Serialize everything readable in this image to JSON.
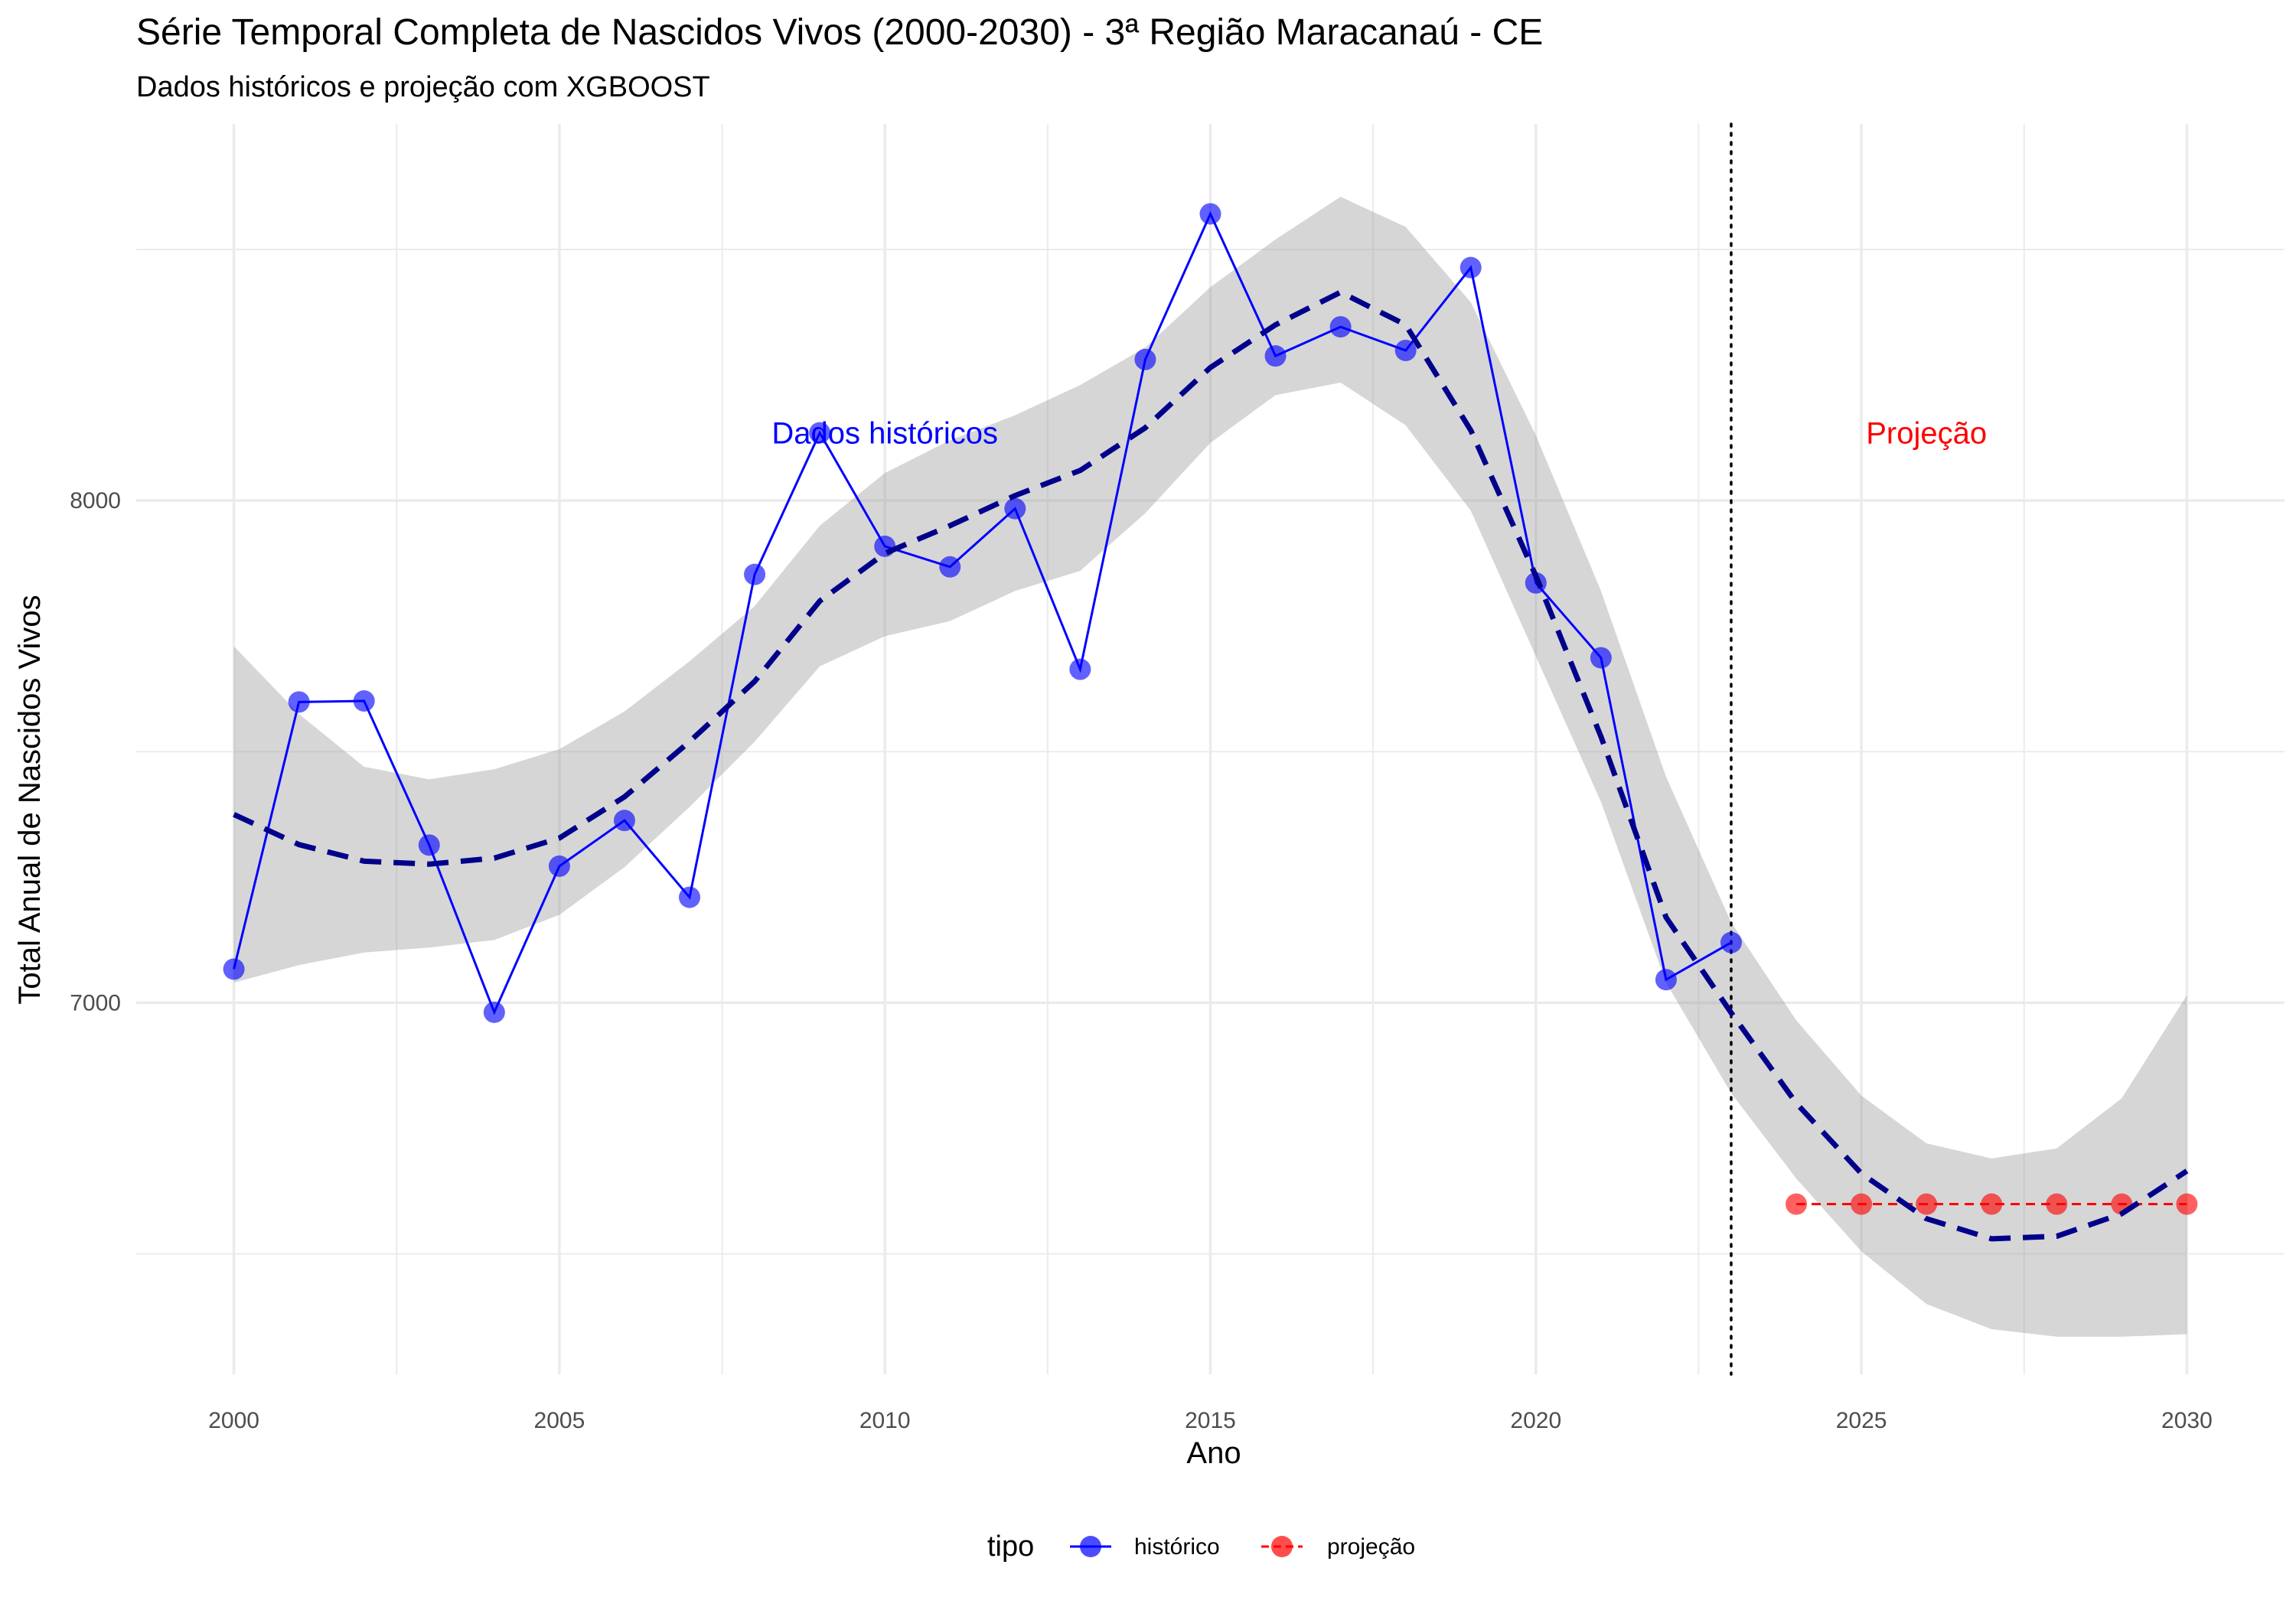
{
  "chart_data": {
    "type": "line",
    "title": "Série Temporal Completa de Nascidos Vivos (2000-2030) -  3ª Região Maracanaú - CE",
    "subtitle": "Dados históricos e projeção com XGBOOST",
    "xlabel": "Ano",
    "ylabel": "Total Anual de Nascidos Vivos",
    "xlim": [
      1998.5,
      2031.5
    ],
    "ylim": [
      6260,
      8750
    ],
    "x_ticks": [
      2000,
      2005,
      2010,
      2015,
      2020,
      2025,
      2030
    ],
    "x_tick_labels": [
      "2000",
      "2005",
      "2010",
      "2015",
      "2020",
      "2025",
      "2030"
    ],
    "y_ticks": [
      7000,
      8000
    ],
    "y_tick_labels": [
      "7000",
      "8000"
    ],
    "grid": true,
    "legend_position": "bottom",
    "legend_title": "tipo",
    "series": [
      {
        "name": "histórico",
        "color": "#0000ff",
        "style": "solid",
        "x": [
          2000,
          2001,
          2002,
          2003,
          2004,
          2005,
          2006,
          2007,
          2008,
          2009,
          2010,
          2011,
          2012,
          2013,
          2014,
          2015,
          2016,
          2017,
          2018,
          2019,
          2020,
          2021,
          2022,
          2023
        ],
        "y": [
          7067,
          7599,
          7601,
          7314,
          6981,
          7272,
          7363,
          7210,
          7853,
          8135,
          7909,
          7868,
          7984,
          7664,
          8281,
          8571,
          8288,
          8346,
          8299,
          8464,
          7836,
          7687,
          7046,
          7120
        ]
      },
      {
        "name": "projeção",
        "color": "#ff0000",
        "style": "dashed",
        "x": [
          2024,
          2025,
          2026,
          2027,
          2028,
          2029,
          2030
        ],
        "y": [
          6599,
          6599,
          6599,
          6599,
          6599,
          6599,
          6599
        ]
      }
    ],
    "trend": {
      "color": "#00008b",
      "style": "dashed",
      "x": [
        2000,
        2001,
        2002,
        2003,
        2004,
        2005,
        2006,
        2007,
        2008,
        2009,
        2010,
        2011,
        2012,
        2013,
        2014,
        2015,
        2016,
        2017,
        2018,
        2019,
        2020,
        2021,
        2022,
        2023,
        2024,
        2025,
        2026,
        2027,
        2028,
        2029,
        2030
      ],
      "y": [
        7375,
        7315,
        7282,
        7276,
        7288,
        7328,
        7410,
        7520,
        7640,
        7800,
        7895,
        7950,
        8010,
        8060,
        8145,
        8265,
        8350,
        8415,
        8350,
        8140,
        7850,
        7530,
        7170,
        6980,
        6800,
        6660,
        6570,
        6530,
        6535,
        6580,
        6665
      ],
      "lower": [
        7040,
        7075,
        7100,
        7110,
        7125,
        7175,
        7270,
        7390,
        7520,
        7670,
        7730,
        7760,
        7820,
        7860,
        7975,
        8115,
        8210,
        8235,
        8150,
        7980,
        7690,
        7400,
        7040,
        6820,
        6650,
        6505,
        6400,
        6350,
        6335,
        6335,
        6340
      ],
      "upper": [
        7710,
        7575,
        7470,
        7445,
        7465,
        7505,
        7580,
        7680,
        7790,
        7950,
        8055,
        8120,
        8170,
        8230,
        8305,
        8425,
        8520,
        8605,
        8545,
        8395,
        8130,
        7820,
        7450,
        7160,
        6965,
        6815,
        6720,
        6690,
        6710,
        6810,
        7015
      ]
    },
    "divider_x": 2023,
    "annotations": [
      {
        "text": "Dados históricos",
        "x": 2010,
        "y": 8135,
        "color": "#0000ff"
      },
      {
        "text": "Projeção",
        "x": 2026,
        "y": 8135,
        "color": "#ff0000"
      }
    ]
  }
}
